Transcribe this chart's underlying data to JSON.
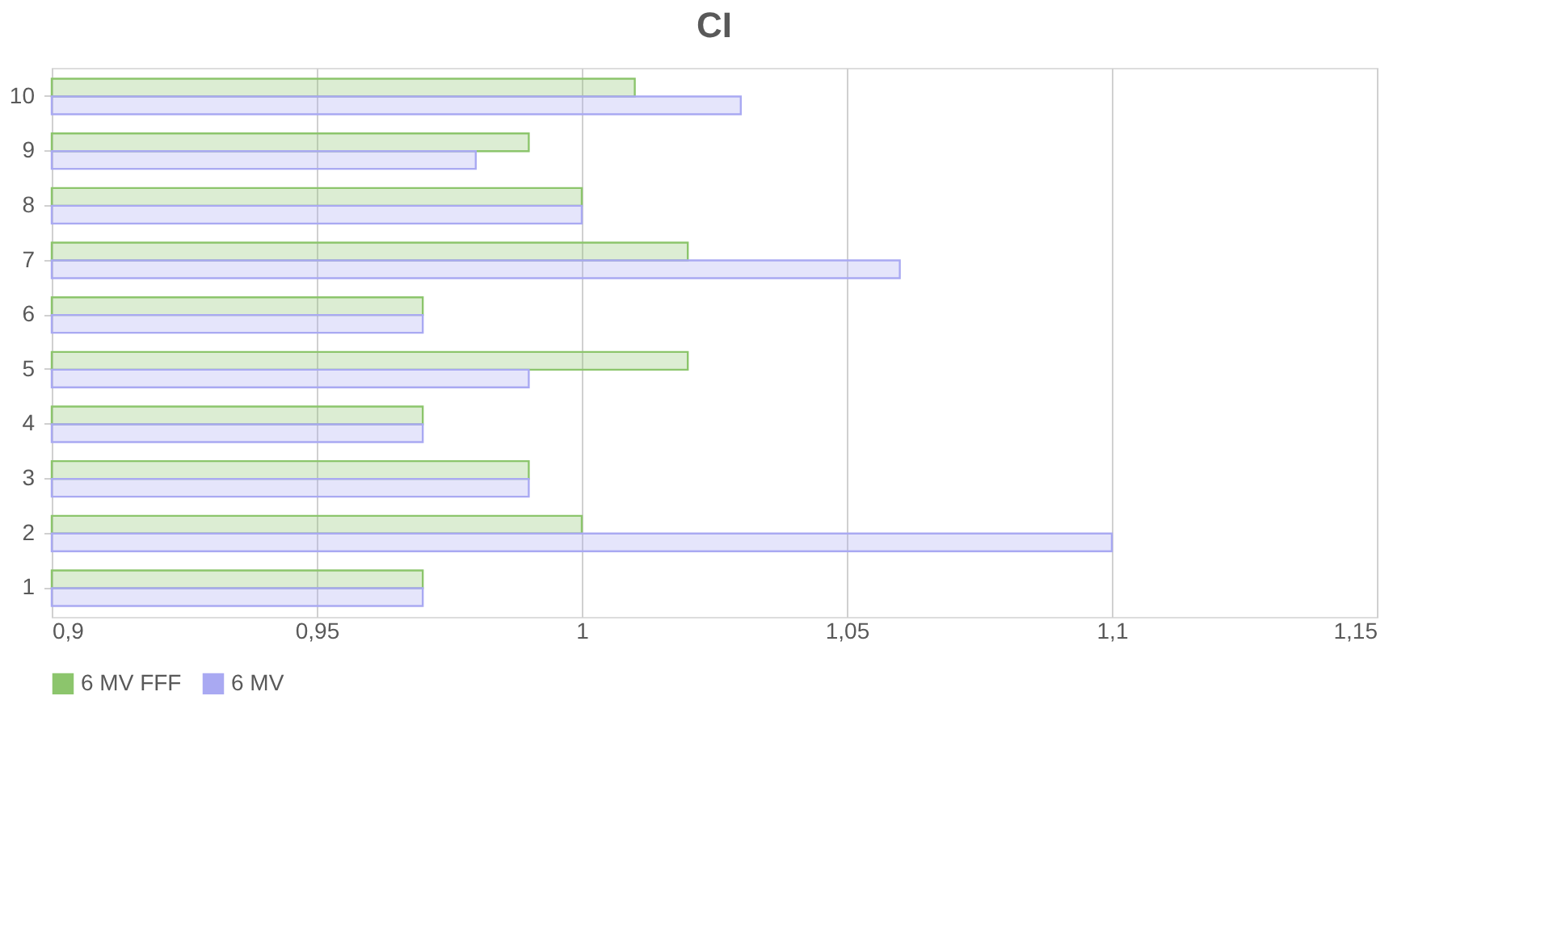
{
  "chart_data": {
    "type": "bar",
    "orientation": "horizontal",
    "title": "CI",
    "categories": [
      "10",
      "9",
      "8",
      "7",
      "6",
      "5",
      "4",
      "3",
      "2",
      "1"
    ],
    "series": [
      {
        "name": "6 MV FFF",
        "color": "#8cc56c",
        "values": [
          1.01,
          0.99,
          1.0,
          1.02,
          0.97,
          1.02,
          0.97,
          0.99,
          1.0,
          0.97
        ]
      },
      {
        "name": "6 MV",
        "color": "#a9a9f2",
        "values": [
          1.03,
          0.98,
          1.0,
          1.06,
          0.97,
          0.99,
          0.97,
          0.99,
          1.1,
          0.97
        ]
      }
    ],
    "xlim": [
      0.9,
      1.15
    ],
    "xticks": [
      {
        "value": 0.9,
        "label": "0,9"
      },
      {
        "value": 0.95,
        "label": "0,95"
      },
      1,
      {
        "value": 1.05,
        "label": "1,05"
      },
      {
        "value": 1.1,
        "label": "1,1"
      },
      {
        "value": 1.15,
        "label": "1,15"
      }
    ],
    "grid": "x",
    "legend": "bottom"
  }
}
